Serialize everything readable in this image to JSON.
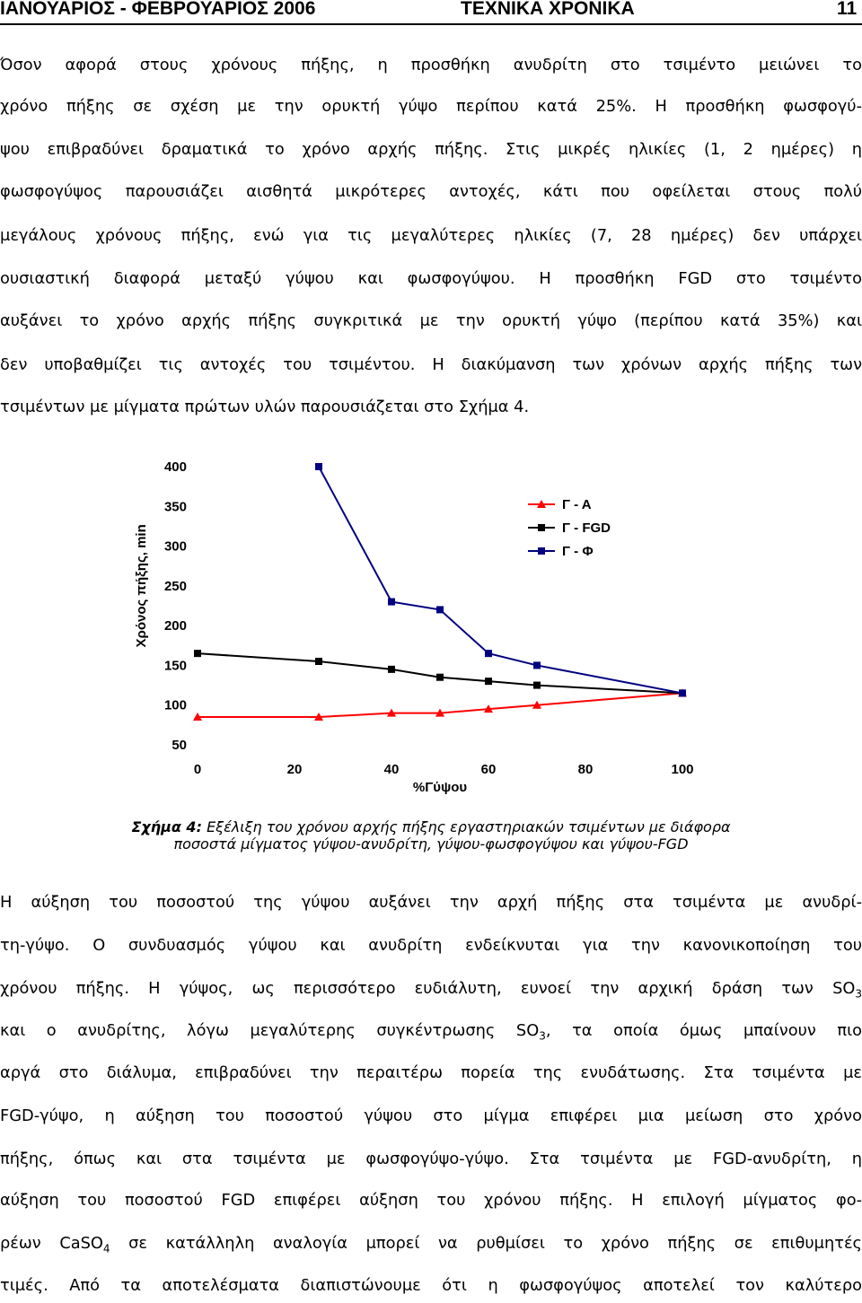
{
  "header": {
    "left": "ΙΑΝΟΥΑΡΙΟΣ - ΦΕΒΡΟΥΑΡΙΟΣ 2006",
    "center": "ΤΕΧΝΙΚΑ ΧΡΟΝΙΚΑ",
    "page_number": "11"
  },
  "para1": [
    "Όσον αφορά στους χρόνους πήξης, η προσθήκη ανυδρίτη στο τσιμέντο μειώνει το",
    "χρόνο πήξης σε σχέση με την ορυκτή γύψο περίπου κατά 25%. Η προσθήκη φωσφογύ-",
    "ψου επιβραδύνει δραματικά το χρόνο αρχής πήξης. Στις μικρές ηλικίες (1, 2 ημέρες) η",
    "φωσφογύψος παρουσιάζει αισθητά μικρότερες αντοχές, κάτι που οφείλεται στους πολύ",
    "μεγάλους χρόνους πήξης, ενώ για τις μεγαλύτερες ηλικίες (7, 28 ημέρες) δεν υπάρχει",
    "ουσιαστική διαφορά μεταξύ γύψου και φωσφογύψου. Η προσθήκη FGD στο τσιμέντο",
    "αυξάνει το χρόνο αρχής πήξης συγκριτικά με την ορυκτή γύψο (περίπου κατά 35%) και",
    "δεν υποβαθμίζει τις αντοχές του τσιμέντου. Η διακύμανση των χρόνων αρχής πήξης των",
    "τσιμέντων με μίγματα πρώτων υλών παρουσιάζεται στο Σχήμα 4."
  ],
  "chart_data": {
    "type": "line",
    "title": "",
    "xlabel": "%Γύψου",
    "ylabel": "Χρόνος πήξης, min",
    "xlim": [
      0,
      100
    ],
    "ylim": [
      50,
      400
    ],
    "x_ticks": [
      "0",
      "20",
      "40",
      "60",
      "80",
      "100"
    ],
    "y_ticks": [
      "50",
      "100",
      "150",
      "200",
      "250",
      "300",
      "350",
      "400"
    ],
    "legend_position": "top-right",
    "series": [
      {
        "name": "Γ - Α",
        "color": "#ff0000",
        "marker": "triangle",
        "x": [
          0,
          25,
          40,
          50,
          60,
          70,
          100
        ],
        "y": [
          85,
          85,
          90,
          90,
          95,
          100,
          115
        ]
      },
      {
        "name": "Γ - FGD",
        "color": "#000000",
        "marker": "square",
        "x": [
          0,
          25,
          40,
          50,
          60,
          70,
          100
        ],
        "y": [
          165,
          155,
          145,
          135,
          130,
          125,
          115
        ]
      },
      {
        "name": "Γ - Φ",
        "color": "#000080",
        "marker": "square",
        "x": [
          25,
          40,
          50,
          60,
          70,
          100
        ],
        "y": [
          400,
          230,
          220,
          165,
          150,
          115
        ]
      }
    ]
  },
  "caption": {
    "label": "Σχήμα 4:",
    "line1": "Εξέλιξη του χρόνου αρχής πήξης εργαστηριακών τσιμέντων με διάφορα",
    "line2": "ποσοστά μίγματος γύψου-ανυδρίτη, γύψου-φωσφογύψου και γύψου-FGD"
  },
  "para2": [
    "Η αύξηση του ποσοστού της γύψου αυξάνει την αρχή πήξης στα τσιμέντα με ανυδρί-",
    "τη-γύψο. Ο συνδυασμός γύψου και ανυδρίτη ενδείκνυται για την κανονικοποίηση του",
    "χρόνου πήξης. Η γύψος, ως περισσότερο ευδιάλυτη, ευνοεί την αρχική δράση των SO3",
    "και ο ανυδρίτης, λόγω μεγαλύτερης συγκέντρωσης SO3, τα οποία όμως μπαίνουν πιο",
    "αργά στο διάλυμα, επιβραδύνει την περαιτέρω πορεία της ενυδάτωσης. Στα τσιμέντα με",
    "FGD-γύψο, η αύξηση του ποσοστού γύψου στο μίγμα επιφέρει μια μείωση στο χρόνο",
    "πήξης, όπως και στα τσιμέντα με φωσφογύψο-γύψο. Στα τσιμέντα με FGD-ανυδρίτη, η",
    "αύξηση του ποσοστού FGD επιφέρει αύξηση του χρόνου πήξης. Η επιλογή μίγματος φο-",
    "ρέων CaSO4 σε κατάλληλη αναλογία μπορεί να ρυθμίσει το χρόνο πήξης σε επιθυμητές",
    "τιμές. Από τα αποτελέσματα διαπιστώνουμε ότι η φωσφογύψος αποτελεί τον καλύτερο"
  ]
}
